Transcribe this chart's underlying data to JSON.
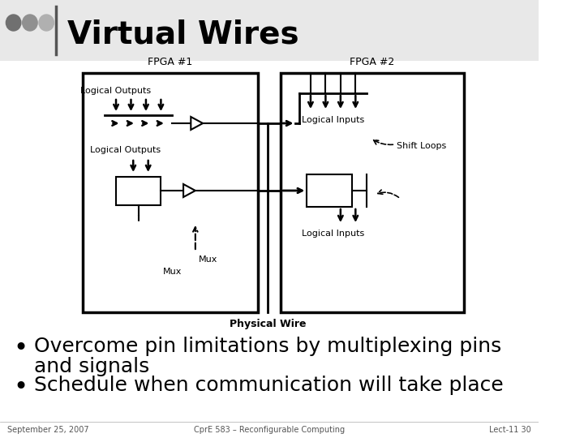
{
  "title": "Virtual Wires",
  "bg_color": "#f0f0f0",
  "slide_bg": "#ffffff",
  "title_color": "#000000",
  "bullet1_line1": "Overcome pin limitations by multiplexing pins",
  "bullet1_line2": "and signals",
  "bullet2": "Schedule when communication will take place",
  "footer_left": "September 25, 2007",
  "footer_center": "CprE 583 – Reconfigurable Computing",
  "footer_right": "Lect-11 30",
  "fpga1_label": "FPGA #1",
  "fpga2_label": "FPGA #2",
  "logical_outputs_label": "Logical Outputs",
  "logical_outputs2_label": "Logical Outputs",
  "logical_inputs1_label": "Logical Inputs",
  "logical_inputs2_label": "Logical Inputs",
  "shift_loops_label": "Shift Loops",
  "mux_label": "Mux",
  "physical_wire_label": "Physical Wire",
  "dot_colors": [
    "#707070",
    "#909090",
    "#b0b0b0"
  ]
}
